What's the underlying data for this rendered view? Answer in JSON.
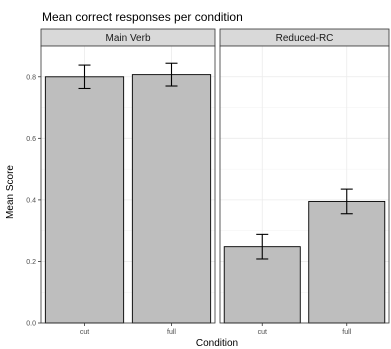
{
  "chart_data": {
    "type": "bar",
    "title": "Mean correct responses per condition",
    "xlabel": "Condition",
    "ylabel": "Mean Score",
    "ylim": [
      0,
      0.9
    ],
    "yticks": [
      0.0,
      0.2,
      0.4,
      0.6,
      0.8
    ],
    "ytick_labels": [
      "0.0",
      "0.2",
      "0.4",
      "0.6",
      "0.8"
    ],
    "grid": true,
    "bar_color": "#bebebe",
    "panels": [
      {
        "name": "Main Verb",
        "categories": [
          "cut",
          "full"
        ],
        "values": [
          0.8,
          0.807
        ],
        "error_low": [
          0.762,
          0.77
        ],
        "error_high": [
          0.838,
          0.844
        ]
      },
      {
        "name": "Reduced-RC",
        "categories": [
          "cut",
          "full"
        ],
        "values": [
          0.248,
          0.395
        ],
        "error_low": [
          0.208,
          0.355
        ],
        "error_high": [
          0.288,
          0.435
        ]
      }
    ]
  }
}
